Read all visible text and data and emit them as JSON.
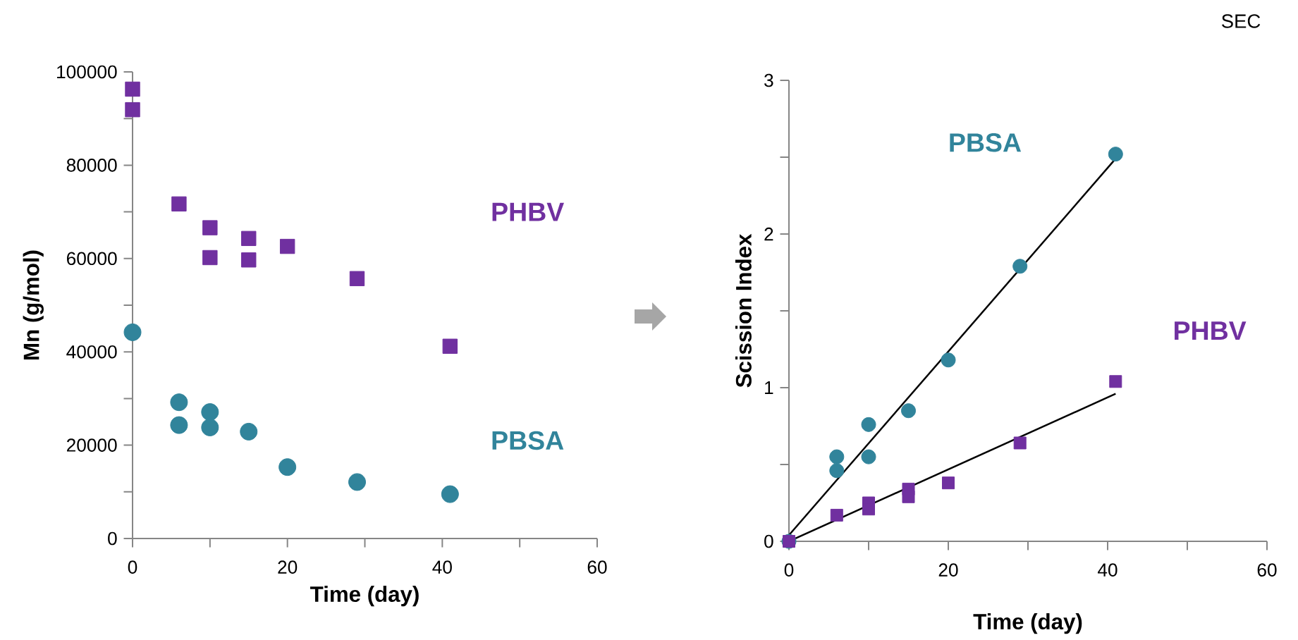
{
  "chart_data": [
    {
      "type": "scatter",
      "xlabel": "Time (day)",
      "ylabel": "Mn (g/mol)",
      "xlim": [
        0,
        60
      ],
      "ylim": [
        0,
        100000
      ],
      "xticks": [
        0,
        {
          "value": 10,
          "label": null
        },
        20,
        {
          "value": 30,
          "label": null
        },
        40,
        {
          "value": 50,
          "label": null
        },
        60
      ],
      "yticks": [
        0,
        {
          "value": 10000,
          "label": null
        },
        20000,
        {
          "value": 30000,
          "label": null
        },
        40000,
        {
          "value": 50000,
          "label": null
        },
        60000,
        {
          "value": 70000,
          "label": null
        },
        80000,
        {
          "value": 90000,
          "label": null
        },
        100000
      ],
      "series": [
        {
          "name": "PHBV",
          "color": "#7030a0",
          "marker": "square",
          "x": [
            0,
            0,
            6,
            10,
            10,
            15,
            15,
            20,
            29,
            41
          ],
          "values": [
            96300,
            91900,
            71700,
            66600,
            60200,
            64300,
            59700,
            62600,
            55700,
            41200
          ]
        },
        {
          "name": "PBSA",
          "color": "#31849b",
          "marker": "circle",
          "x": [
            0,
            6,
            6,
            10,
            10,
            15,
            20,
            29,
            41
          ],
          "values": [
            44200,
            29200,
            24300,
            27100,
            23800,
            22900,
            15300,
            12100,
            9500
          ]
        }
      ]
    },
    {
      "type": "scatter",
      "xlabel": "Time (day)",
      "ylabel": "Scission Index",
      "xlim": [
        0,
        60
      ],
      "ylim": [
        0,
        3
      ],
      "xticks": [
        0,
        {
          "value": 10,
          "label": null
        },
        20,
        {
          "value": 30,
          "label": null
        },
        40,
        {
          "value": 50,
          "label": null
        },
        60
      ],
      "yticks": [
        0,
        {
          "value": 0.5,
          "label": null
        },
        1,
        {
          "value": 1.5,
          "label": null
        },
        2,
        {
          "value": 2.5,
          "label": null
        },
        3
      ],
      "annotations": [
        "SEC"
      ],
      "series": [
        {
          "name": "PBSA",
          "color": "#31849b",
          "marker": "circle",
          "x": [
            0,
            6,
            6,
            10,
            10,
            15,
            20,
            29,
            41
          ],
          "values": [
            0,
            0.55,
            0.46,
            0.76,
            0.55,
            0.85,
            1.18,
            1.79,
            2.52
          ]
        },
        {
          "name": "PHBV",
          "color": "#7030a0",
          "marker": "square",
          "x": [
            0,
            6,
            10,
            10,
            15,
            15,
            20,
            29,
            41
          ],
          "values": [
            0,
            0.17,
            0.25,
            0.21,
            0.34,
            0.29,
            0.38,
            0.64,
            1.04
          ]
        },
        {
          "type": "line",
          "color": "#000000",
          "marker": "none",
          "line_style": "solid",
          "x": [
            0,
            41
          ],
          "values": [
            0.04,
            2.49
          ]
        },
        {
          "type": "line",
          "color": "#000000",
          "marker": "none",
          "line_style": "solid",
          "x": [
            0,
            41
          ],
          "values": [
            0,
            0.96
          ]
        }
      ]
    }
  ]
}
